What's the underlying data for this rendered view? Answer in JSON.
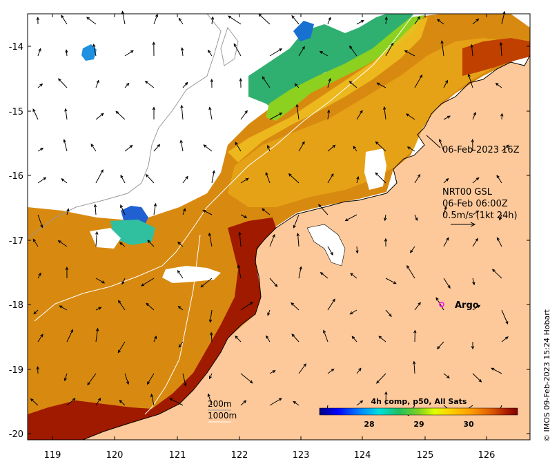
{
  "map": {
    "y_ticks": [
      "-14",
      "-15",
      "-16",
      "-17",
      "-18",
      "-19",
      "-20"
    ],
    "x_ticks": [
      "119",
      "120",
      "121",
      "122",
      "123",
      "124",
      "125",
      "126"
    ],
    "timestamp_label": "06-Feb-2023 16Z",
    "current_model": "NRT00 GSL",
    "current_time": "06-Feb 06:00Z",
    "current_scale": "0.5m/s (1kt 24h)",
    "argo_label": "Argo",
    "contour_200": "200m",
    "contour_1000": "1000m",
    "credit": "© IMOS 09-Feb-2023 15:24 Hobart"
  },
  "colorbar": {
    "title": "4h comp, p50, All Sats",
    "ticks": [
      "28",
      "29",
      "30"
    ],
    "colors": [
      "#00007f",
      "#0000ff",
      "#007fff",
      "#00dfe0",
      "#20c060",
      "#7fd020",
      "#dfff00",
      "#ffd000",
      "#ff9f00",
      "#e06000",
      "#b02000",
      "#7f0000"
    ]
  },
  "palette": {
    "land": "#fdc99a",
    "sst_warm": "#d88a10",
    "sst_hot": "#a01a00",
    "sst_mid": "#e8b020",
    "sst_cool": "#40c060",
    "argo": "#ff00ff"
  }
}
